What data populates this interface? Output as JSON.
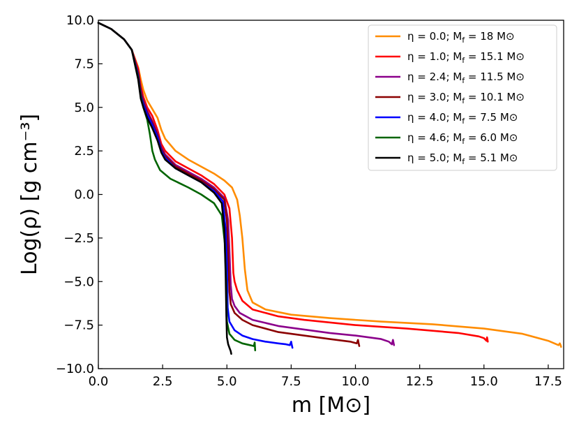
{
  "chart_data": {
    "type": "line",
    "title": "",
    "xlabel": "m [M⊙]",
    "ylabel": "Log(ρ) [g cm⁻³]",
    "xlim": [
      0.0,
      18.1
    ],
    "ylim": [
      -10.0,
      10.0
    ],
    "x_ticks": [
      "0.0",
      "2.5",
      "5.0",
      "7.5",
      "10.0",
      "12.5",
      "15.0",
      "17.5"
    ],
    "x_tick_values": [
      0.0,
      2.5,
      5.0,
      7.5,
      10.0,
      12.5,
      15.0,
      17.5
    ],
    "y_ticks": [
      "10.0",
      "7.5",
      "5.0",
      "2.5",
      "0.0",
      "−2.5",
      "−5.0",
      "−7.5",
      "−10.0"
    ],
    "y_tick_values": [
      10.0,
      7.5,
      5.0,
      2.5,
      0.0,
      -2.5,
      -5.0,
      -7.5,
      -10.0
    ],
    "legend_position": "top-right",
    "series": [
      {
        "name": "η = 0.0; Mf = 18 M⊙",
        "label_eta": "η = 0.0; M",
        "label_sub": "f",
        "label_rest": " = 18   M⊙",
        "color": "#ff8c00",
        "x": [
          0.0,
          0.5,
          1.0,
          1.3,
          1.55,
          1.65,
          1.75,
          1.9,
          2.1,
          2.3,
          2.45,
          2.6,
          3.0,
          3.5,
          4.0,
          4.5,
          4.9,
          5.2,
          5.4,
          5.5,
          5.6,
          5.7,
          5.8,
          6.0,
          6.5,
          7.5,
          9.0,
          11.0,
          13.0,
          15.0,
          16.5,
          17.5,
          17.9,
          17.95,
          17.98,
          18.0
        ],
        "y": [
          9.85,
          9.5,
          8.9,
          8.3,
          7.3,
          6.6,
          6.0,
          5.4,
          4.9,
          4.4,
          3.7,
          3.2,
          2.5,
          2.0,
          1.6,
          1.2,
          0.8,
          0.4,
          -0.3,
          -1.2,
          -2.5,
          -4.3,
          -5.5,
          -6.2,
          -6.6,
          -6.9,
          -7.1,
          -7.3,
          -7.45,
          -7.7,
          -8.0,
          -8.4,
          -8.65,
          -8.55,
          -8.65,
          -8.75
        ]
      },
      {
        "name": "η = 1.0; Mf = 15.1 M⊙",
        "label_eta": "η = 1.0; M",
        "label_sub": "f",
        "label_rest": " = 15.1 M⊙",
        "color": "#ff0000",
        "x": [
          0.0,
          0.5,
          1.0,
          1.3,
          1.55,
          1.65,
          1.75,
          1.9,
          2.1,
          2.3,
          2.45,
          2.6,
          3.0,
          3.5,
          4.0,
          4.5,
          4.9,
          5.1,
          5.2,
          5.25,
          5.3,
          5.4,
          5.6,
          6.0,
          7.0,
          8.0,
          10.0,
          12.0,
          14.0,
          14.8,
          15.0,
          15.1,
          15.12,
          15.15
        ],
        "y": [
          9.85,
          9.5,
          8.9,
          8.3,
          7.2,
          6.2,
          5.6,
          5.0,
          4.5,
          3.7,
          2.9,
          2.5,
          1.9,
          1.5,
          1.1,
          0.6,
          0.0,
          -0.8,
          -2.5,
          -4.5,
          -5.0,
          -5.5,
          -6.1,
          -6.6,
          -7.0,
          -7.2,
          -7.5,
          -7.7,
          -7.95,
          -8.15,
          -8.25,
          -8.4,
          -8.2,
          -8.45
        ]
      },
      {
        "name": "η = 2.4; Mf = 11.5 M⊙",
        "label_eta": "η = 2.4; M",
        "label_sub": "f",
        "label_rest": " = 11.5 M⊙",
        "color": "#8b008b",
        "x": [
          0.0,
          0.5,
          1.0,
          1.3,
          1.55,
          1.65,
          1.75,
          1.9,
          2.1,
          2.3,
          2.45,
          2.6,
          3.0,
          3.5,
          4.0,
          4.5,
          4.9,
          5.05,
          5.1,
          5.15,
          5.2,
          5.3,
          5.5,
          6.0,
          7.0,
          8.0,
          9.0,
          10.0,
          11.0,
          11.3,
          11.42,
          11.46,
          11.5
        ],
        "y": [
          9.85,
          9.5,
          8.9,
          8.3,
          7.0,
          6.0,
          5.4,
          4.8,
          4.2,
          3.5,
          2.7,
          2.3,
          1.7,
          1.3,
          0.9,
          0.4,
          -0.2,
          -1.5,
          -3.2,
          -5.2,
          -6.0,
          -6.4,
          -6.8,
          -7.2,
          -7.55,
          -7.75,
          -7.95,
          -8.1,
          -8.3,
          -8.45,
          -8.6,
          -8.35,
          -8.65
        ]
      },
      {
        "name": "η = 3.0; Mf = 10.1 M⊙",
        "label_eta": "η = 3.0; M",
        "label_sub": "f",
        "label_rest": " = 10.1 M⊙",
        "color": "#8b0000",
        "x": [
          0.0,
          0.5,
          1.0,
          1.3,
          1.55,
          1.65,
          1.75,
          1.9,
          2.1,
          2.3,
          2.45,
          2.6,
          3.0,
          3.5,
          4.0,
          4.5,
          4.9,
          5.0,
          5.05,
          5.1,
          5.15,
          5.3,
          5.6,
          6.0,
          7.0,
          8.0,
          9.0,
          9.8,
          10.05,
          10.1,
          10.12,
          10.15
        ],
        "y": [
          9.85,
          9.5,
          8.9,
          8.3,
          6.9,
          5.9,
          5.3,
          4.7,
          4.1,
          3.4,
          2.6,
          2.2,
          1.6,
          1.2,
          0.8,
          0.3,
          -0.3,
          -1.5,
          -3.5,
          -5.6,
          -6.3,
          -6.8,
          -7.2,
          -7.5,
          -7.9,
          -8.1,
          -8.3,
          -8.45,
          -8.55,
          -8.35,
          -8.5,
          -8.7
        ]
      },
      {
        "name": "η = 4.0; Mf = 7.5 M⊙",
        "label_eta": "η = 4.0; M",
        "label_sub": "f",
        "label_rest": " = 7.5  M⊙",
        "color": "#0000ff",
        "x": [
          0.0,
          0.5,
          1.0,
          1.3,
          1.55,
          1.65,
          1.75,
          1.9,
          2.1,
          2.3,
          2.45,
          2.6,
          3.0,
          3.5,
          4.0,
          4.5,
          4.85,
          4.95,
          5.0,
          5.03,
          5.1,
          5.3,
          5.6,
          6.0,
          6.5,
          7.0,
          7.3,
          7.45,
          7.5,
          7.52,
          7.55
        ],
        "y": [
          9.85,
          9.5,
          8.9,
          8.3,
          6.8,
          5.7,
          5.2,
          4.6,
          4.0,
          3.3,
          2.5,
          2.1,
          1.5,
          1.1,
          0.7,
          0.2,
          -0.4,
          -2.0,
          -4.0,
          -6.5,
          -7.3,
          -7.8,
          -8.1,
          -8.3,
          -8.45,
          -8.55,
          -8.6,
          -8.65,
          -8.45,
          -8.6,
          -8.8
        ]
      },
      {
        "name": "η = 4.6; Mf = 6.0 M⊙",
        "label_eta": "η = 4.6; M",
        "label_sub": "f",
        "label_rest": " = 6.0  M⊙",
        "color": "#006400",
        "x": [
          0.0,
          0.5,
          1.0,
          1.3,
          1.55,
          1.65,
          1.75,
          1.9,
          2.0,
          2.1,
          2.2,
          2.4,
          2.8,
          3.5,
          4.0,
          4.5,
          4.8,
          4.92,
          4.97,
          5.0,
          5.1,
          5.3,
          5.6,
          5.9,
          6.05,
          6.08,
          6.1
        ],
        "y": [
          9.85,
          9.5,
          8.9,
          8.3,
          6.7,
          5.6,
          5.0,
          4.3,
          3.5,
          2.5,
          2.0,
          1.4,
          0.9,
          0.4,
          0.0,
          -0.5,
          -1.2,
          -2.8,
          -5.0,
          -7.3,
          -8.0,
          -8.35,
          -8.55,
          -8.65,
          -8.7,
          -8.5,
          -8.95
        ]
      },
      {
        "name": "η = 5.0; Mf = 5.1 M⊙",
        "label_eta": "η = 5.0; M",
        "label_sub": "f",
        "label_rest": " = 5.1  M⊙",
        "color": "#000000",
        "x": [
          0.0,
          0.5,
          1.0,
          1.3,
          1.55,
          1.65,
          1.75,
          1.9,
          2.1,
          2.3,
          2.45,
          2.6,
          3.0,
          3.5,
          4.0,
          4.5,
          4.8,
          4.9,
          4.95,
          4.98,
          5.0,
          5.05,
          5.1,
          5.15,
          5.17
        ],
        "y": [
          9.85,
          9.5,
          8.9,
          8.3,
          6.6,
          5.5,
          5.0,
          4.4,
          3.8,
          3.1,
          2.4,
          2.0,
          1.5,
          1.1,
          0.7,
          0.1,
          -0.5,
          -2.0,
          -4.5,
          -7.0,
          -8.2,
          -8.6,
          -8.8,
          -9.0,
          -9.15
        ]
      }
    ]
  }
}
